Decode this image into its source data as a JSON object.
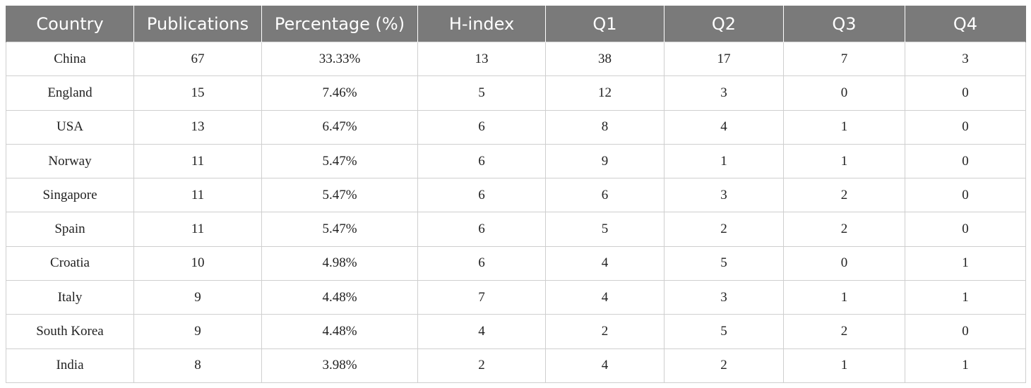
{
  "table": {
    "headers": [
      "Country",
      "Publications",
      "Percentage (%)",
      "H-index",
      "Q1",
      "Q2",
      "Q3",
      "Q4"
    ],
    "rows": [
      [
        "China",
        "67",
        "33.33%",
        "13",
        "38",
        "17",
        "7",
        "3"
      ],
      [
        "England",
        "15",
        "7.46%",
        "5",
        "12",
        "3",
        "0",
        "0"
      ],
      [
        "USA",
        "13",
        "6.47%",
        "6",
        "8",
        "4",
        "1",
        "0"
      ],
      [
        "Norway",
        "11",
        "5.47%",
        "6",
        "9",
        "1",
        "1",
        "0"
      ],
      [
        "Singapore",
        "11",
        "5.47%",
        "6",
        "6",
        "3",
        "2",
        "0"
      ],
      [
        "Spain",
        "11",
        "5.47%",
        "6",
        "5",
        "2",
        "2",
        "0"
      ],
      [
        "Croatia",
        "10",
        "4.98%",
        "6",
        "4",
        "5",
        "0",
        "1"
      ],
      [
        "Italy",
        "9",
        "4.48%",
        "7",
        "4",
        "3",
        "1",
        "1"
      ],
      [
        "South Korea",
        "9",
        "4.48%",
        "4",
        "2",
        "5",
        "2",
        "0"
      ],
      [
        "India",
        "8",
        "3.98%",
        "2",
        "4",
        "2",
        "1",
        "1"
      ]
    ]
  }
}
